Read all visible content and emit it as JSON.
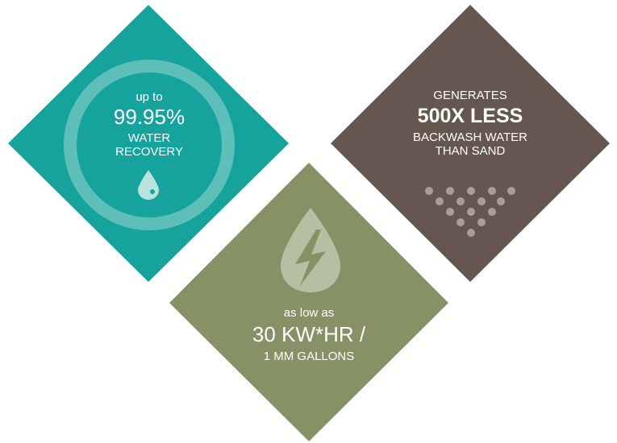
{
  "colors": {
    "teal": "#16a39d",
    "brown": "#665650",
    "olive": "#869266",
    "white": "#ffffff"
  },
  "recovery": {
    "prefix": "up to",
    "value": "99.95%",
    "line1": "WATER",
    "line2": "RECOVERY",
    "icon": "water-drop-icon"
  },
  "backwash": {
    "line1": "GENERATES",
    "value": "500X LESS",
    "line2": "BACKWASH WATER",
    "line3": "THAN SAND",
    "icon": "dot-pyramid-icon"
  },
  "energy": {
    "prefix": "as low as",
    "value": "30 KW*HR /",
    "line1": "1 MM GALLONS",
    "icon": "lightning-drop-icon"
  }
}
